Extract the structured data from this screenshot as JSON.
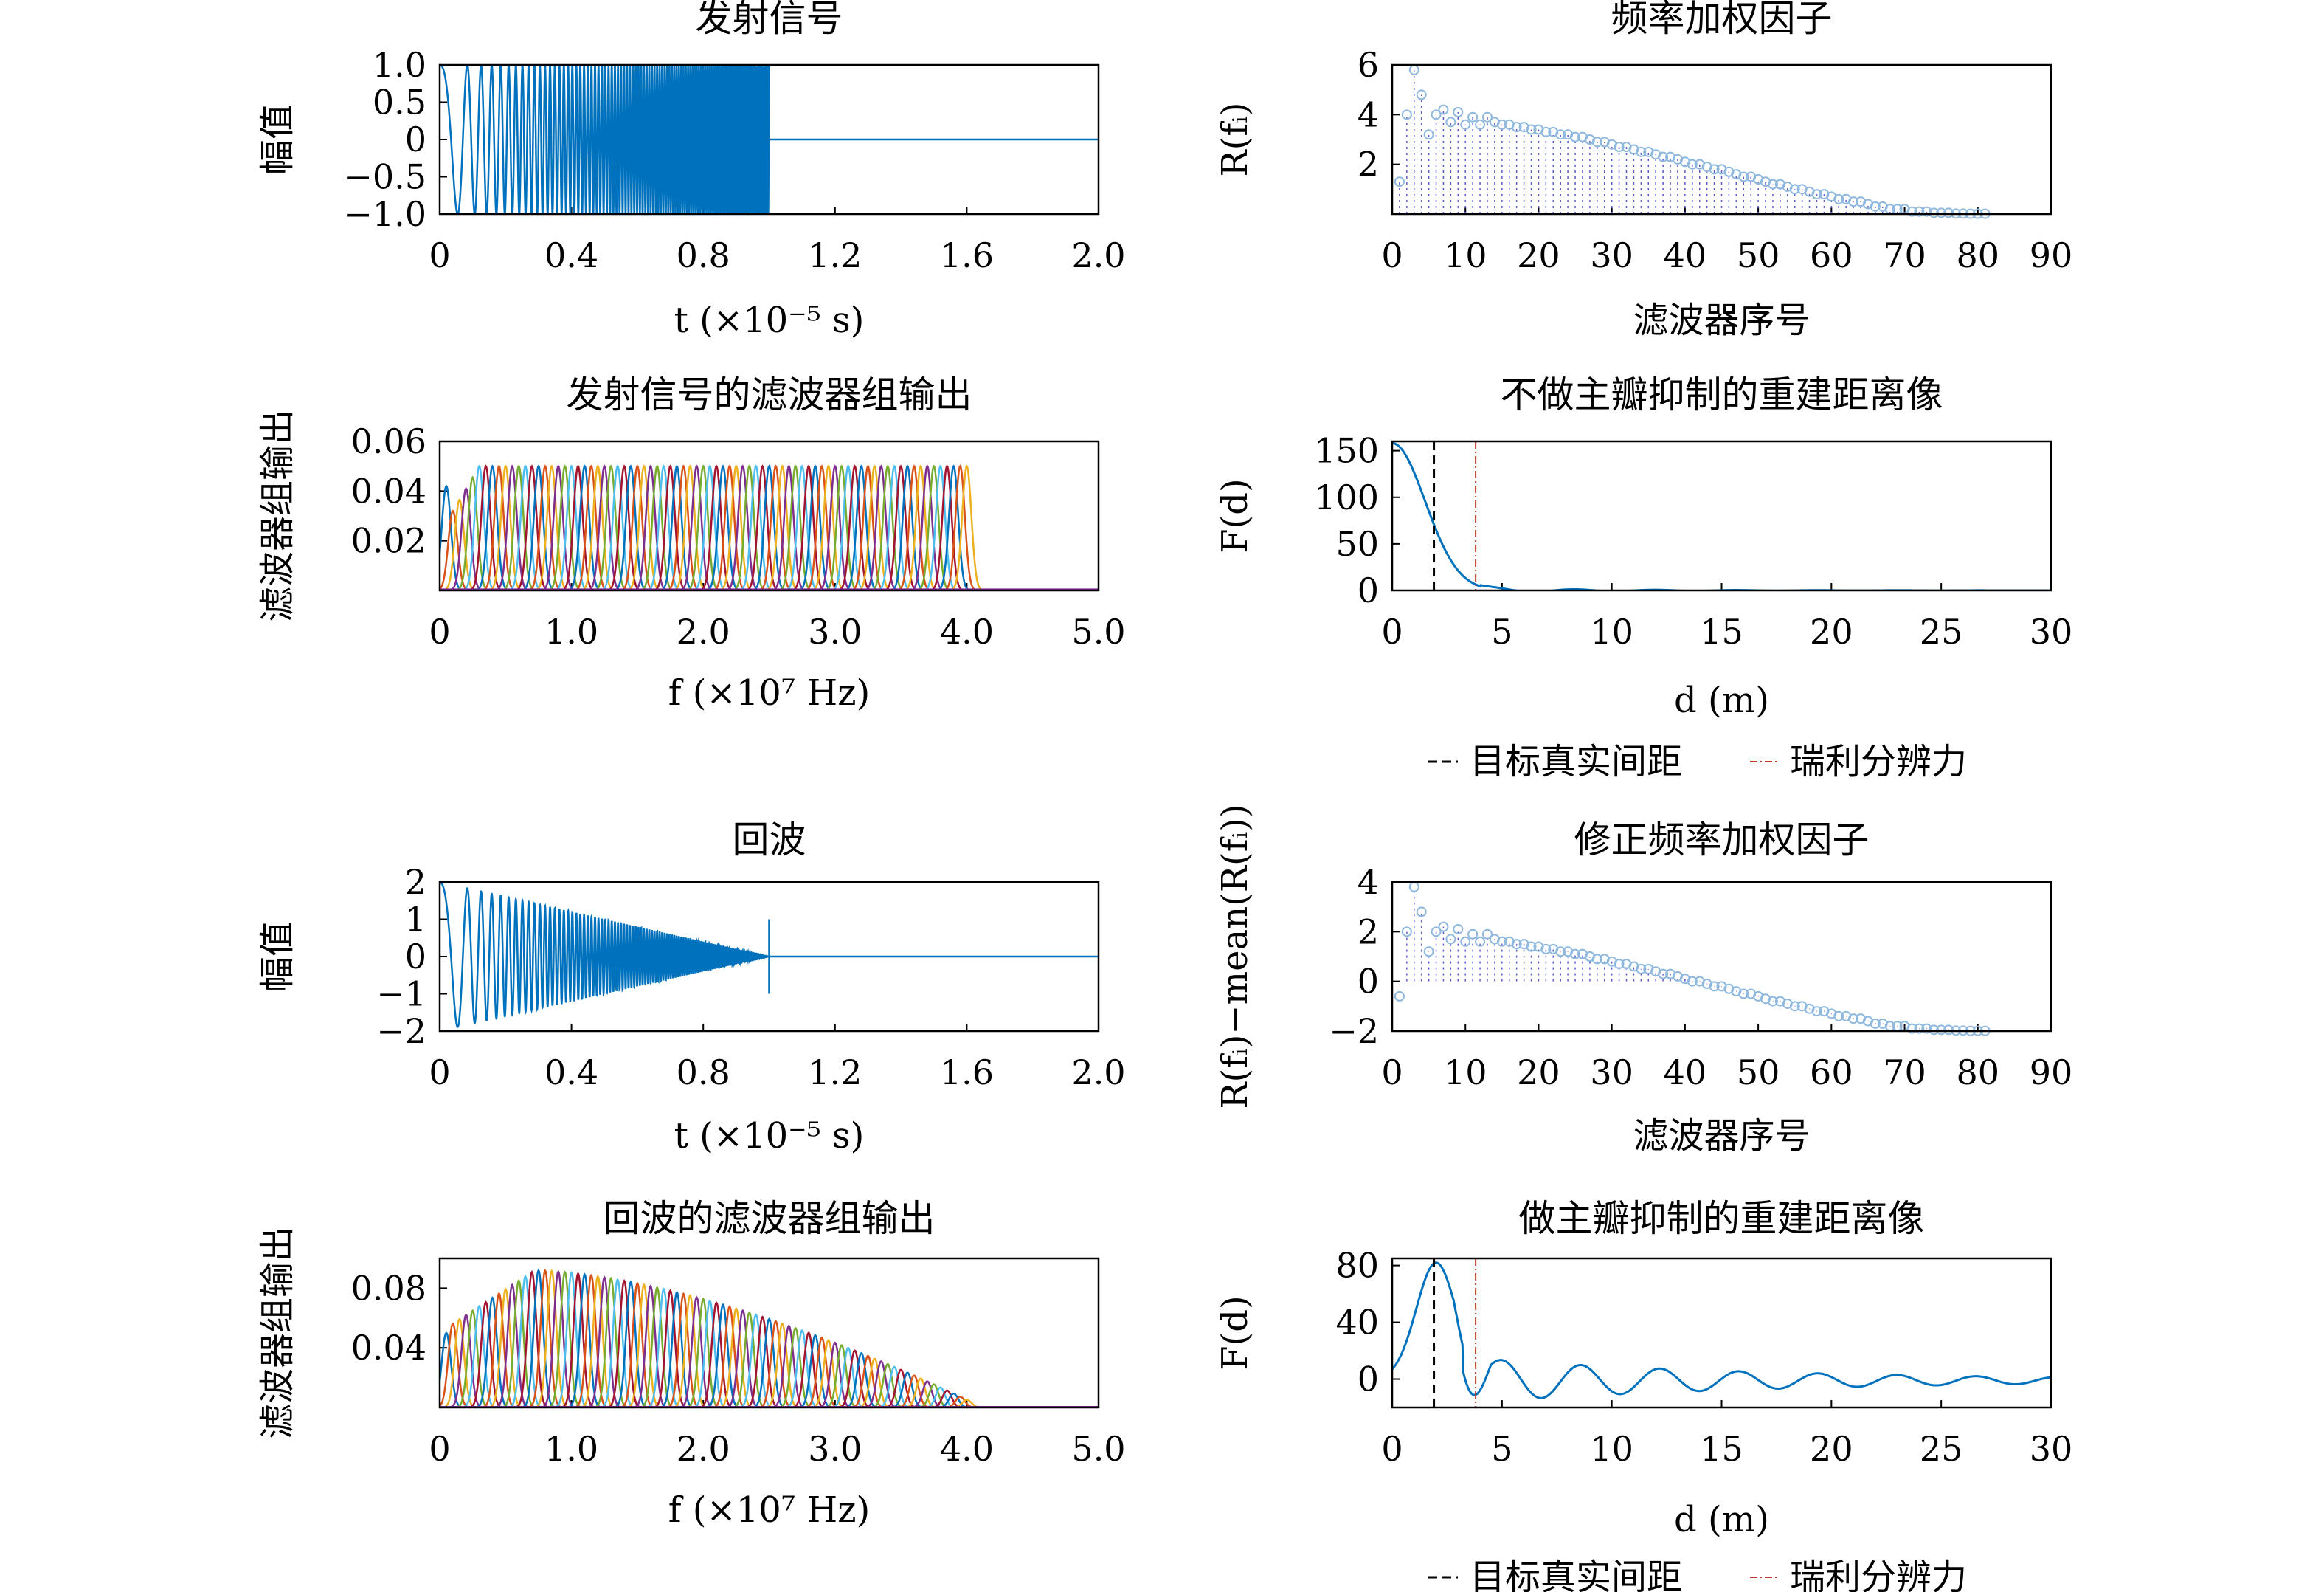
{
  "colors": {
    "primary": "#0072bd",
    "true_distance": "#000000",
    "rayleigh": "#c0392b",
    "stem_marker": "#8fb8de",
    "stem_line": "#5a5ad0",
    "filter_palette": [
      "#0072bd",
      "#d95319",
      "#edb120",
      "#7e2f8e",
      "#77ac30",
      "#4dbeee",
      "#a2142f"
    ]
  },
  "chart_data": [
    {
      "id": "tx",
      "type": "line",
      "title": "发射信号",
      "xlabel": "t (×10⁻⁵ s)",
      "ylabel": "幅值",
      "xlim": [
        0,
        2.0
      ],
      "ylim": [
        -1.0,
        1.0
      ],
      "xticks": [
        "0",
        "0.4",
        "0.8",
        "1.2",
        "1.6",
        "2.0"
      ],
      "xtick_values": [
        0,
        0.4,
        0.8,
        1.2,
        1.6,
        2.0
      ],
      "yticks": [
        "1.0",
        "0.5",
        "0",
        "−0.5",
        "−1.0"
      ],
      "ytick_values": [
        1.0,
        0.5,
        0,
        -0.5,
        -1.0
      ],
      "signal": {
        "start": 0,
        "end": 1.0,
        "amplitude": 1.0,
        "decay": 0,
        "after": 0
      }
    },
    {
      "id": "wf",
      "type": "stem",
      "title": "频率加权因子",
      "xlabel": "滤波器序号",
      "ylabel": "R(fᵢ)",
      "xlim": [
        0,
        90
      ],
      "ylim": [
        0,
        6
      ],
      "xticks": [
        "0",
        "10",
        "20",
        "30",
        "40",
        "50",
        "60",
        "70",
        "80",
        "90"
      ],
      "xtick_values": [
        0,
        10,
        20,
        30,
        40,
        50,
        60,
        70,
        80,
        90
      ],
      "yticks": [
        "6",
        "4",
        "2"
      ],
      "ytick_values": [
        6,
        4,
        2
      ],
      "y": [
        1.3,
        4.0,
        5.8,
        4.8,
        3.2,
        4.0,
        4.2,
        3.7,
        4.1,
        3.6,
        3.9,
        3.6,
        3.9,
        3.7,
        3.6,
        3.6,
        3.5,
        3.5,
        3.4,
        3.4,
        3.3,
        3.3,
        3.2,
        3.2,
        3.1,
        3.1,
        3.0,
        2.9,
        2.9,
        2.8,
        2.7,
        2.7,
        2.6,
        2.5,
        2.5,
        2.4,
        2.3,
        2.3,
        2.2,
        2.1,
        2.0,
        2.0,
        1.9,
        1.8,
        1.8,
        1.7,
        1.6,
        1.5,
        1.5,
        1.4,
        1.3,
        1.2,
        1.2,
        1.1,
        1.0,
        1.0,
        0.9,
        0.8,
        0.8,
        0.7,
        0.6,
        0.6,
        0.5,
        0.5,
        0.4,
        0.3,
        0.3,
        0.2,
        0.2,
        0.2,
        0.1,
        0.1,
        0.1,
        0.05,
        0.05,
        0.05,
        0.02,
        0.02,
        0.01,
        0.01,
        0.01
      ]
    },
    {
      "id": "txbank",
      "type": "line",
      "title": "发射信号的滤波器组输出",
      "xlabel": "f (×10⁷ Hz)",
      "ylabel": "滤波器组输出",
      "xlim": [
        0,
        5.0
      ],
      "ylim": [
        0,
        0.06
      ],
      "xticks": [
        "0",
        "1.0",
        "2.0",
        "3.0",
        "4.0",
        "5.0"
      ],
      "xtick_values": [
        0,
        1.0,
        2.0,
        3.0,
        4.0,
        5.0
      ],
      "yticks": [
        "0.06",
        "0.04",
        "0.02"
      ],
      "ytick_values": [
        0.06,
        0.04,
        0.02
      ],
      "bank": {
        "count": 80,
        "first_center": 0.05,
        "last_center": 4.0,
        "width": 0.035,
        "peak": 0.05,
        "first_peak": 0.042
      }
    },
    {
      "id": "rec1",
      "type": "line",
      "title": "不做主瓣抑制的重建距离像",
      "xlabel": "d (m)",
      "ylabel": "F(d)",
      "xlim": [
        0,
        30
      ],
      "ylim": [
        0,
        160
      ],
      "xticks": [
        "0",
        "5",
        "10",
        "15",
        "20",
        "25",
        "30"
      ],
      "xtick_values": [
        0,
        5,
        10,
        15,
        20,
        25,
        30
      ],
      "yticks": [
        "150",
        "100",
        "50",
        "0"
      ],
      "ytick_values": [
        150,
        100,
        50,
        0
      ],
      "true_distance": 1.9,
      "rayleigh_distance": 3.8,
      "profile": {
        "kind": "single",
        "peak": 158,
        "width": 1.5
      }
    },
    {
      "id": "echo",
      "type": "line",
      "title": "回波",
      "xlabel": "t (×10⁻⁵ s)",
      "ylabel": "幅值",
      "xlim": [
        0,
        2.0
      ],
      "ylim": [
        -2,
        2
      ],
      "xticks": [
        "0",
        "0.4",
        "0.8",
        "1.2",
        "1.6",
        "2.0"
      ],
      "xtick_values": [
        0,
        0.4,
        0.8,
        1.2,
        1.6,
        2.0
      ],
      "yticks": [
        "2",
        "1",
        "0",
        "−1",
        "−2"
      ],
      "ytick_values": [
        2,
        1,
        0,
        -1,
        -2
      ],
      "signal": {
        "start": 0,
        "end": 1.0,
        "amplitude": 2.0,
        "decay": 1,
        "after": 0
      }
    },
    {
      "id": "mwf",
      "type": "stem",
      "title": "修正频率加权因子",
      "xlabel": "滤波器序号",
      "ylabel": "R(fᵢ)−mean(R(fᵢ))",
      "xlim": [
        0,
        90
      ],
      "ylim": [
        -2,
        4
      ],
      "xticks": [
        "0",
        "10",
        "20",
        "30",
        "40",
        "50",
        "60",
        "70",
        "80",
        "90"
      ],
      "xtick_values": [
        0,
        10,
        20,
        30,
        40,
        50,
        60,
        70,
        80,
        90
      ],
      "yticks": [
        "4",
        "2",
        "0",
        "−2"
      ],
      "ytick_values": [
        4,
        2,
        0,
        -2
      ],
      "y": [
        -0.6,
        2.0,
        3.8,
        2.8,
        1.2,
        2.0,
        2.2,
        1.7,
        2.1,
        1.6,
        1.9,
        1.6,
        1.9,
        1.7,
        1.6,
        1.6,
        1.5,
        1.5,
        1.4,
        1.4,
        1.3,
        1.3,
        1.2,
        1.2,
        1.1,
        1.1,
        1.0,
        0.9,
        0.9,
        0.8,
        0.7,
        0.7,
        0.6,
        0.5,
        0.5,
        0.4,
        0.3,
        0.3,
        0.2,
        0.1,
        0.0,
        0.0,
        -0.1,
        -0.2,
        -0.2,
        -0.3,
        -0.4,
        -0.5,
        -0.5,
        -0.6,
        -0.7,
        -0.8,
        -0.8,
        -0.9,
        -1.0,
        -1.0,
        -1.1,
        -1.2,
        -1.2,
        -1.3,
        -1.4,
        -1.4,
        -1.5,
        -1.5,
        -1.6,
        -1.7,
        -1.7,
        -1.8,
        -1.8,
        -1.8,
        -1.9,
        -1.9,
        -1.9,
        -1.95,
        -1.95,
        -1.95,
        -1.98,
        -1.98,
        -1.99,
        -1.99,
        -1.99
      ]
    },
    {
      "id": "rxbank",
      "type": "line",
      "title": "回波的滤波器组输出",
      "xlabel": "f (×10⁷ Hz)",
      "ylabel": "滤波器组输出",
      "xlim": [
        0,
        5.0
      ],
      "ylim": [
        0,
        0.1
      ],
      "xticks": [
        "0",
        "1.0",
        "2.0",
        "3.0",
        "4.0",
        "5.0"
      ],
      "xtick_values": [
        0,
        1.0,
        2.0,
        3.0,
        4.0,
        5.0
      ],
      "yticks": [
        "0.08",
        "0.04"
      ],
      "ytick_values": [
        0.08,
        0.04
      ],
      "bank": {
        "count": 80,
        "first_center": 0.05,
        "last_center": 4.0,
        "width": 0.035,
        "peak": 0.092,
        "first_peak": 0.05,
        "falloff": true
      }
    },
    {
      "id": "rec2",
      "type": "line",
      "title": "做主瓣抑制的重建距离像",
      "xlabel": "d (m)",
      "ylabel": "F(d)",
      "xlim": [
        0,
        30
      ],
      "ylim": [
        -20,
        85
      ],
      "xticks": [
        "0",
        "5",
        "10",
        "15",
        "20",
        "25",
        "30"
      ],
      "xtick_values": [
        0,
        5,
        10,
        15,
        20,
        25,
        30
      ],
      "yticks": [
        "80",
        "40",
        "0"
      ],
      "ytick_values": [
        80,
        40,
        0
      ],
      "true_distance": 1.9,
      "rayleigh_distance": 3.8,
      "profile": {
        "kind": "ripple",
        "peak": 82,
        "center": 2.0,
        "width": 0.9
      }
    }
  ],
  "legend": {
    "true_distance": "目标真实间距",
    "rayleigh": "瑞利分辨力"
  }
}
